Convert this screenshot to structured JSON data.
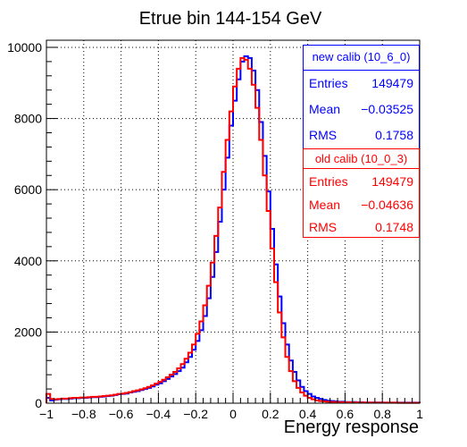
{
  "chart_data": {
    "type": "histogram",
    "title": "Etrue bin 144-154 GeV",
    "xlabel": "Energy response",
    "ylabel": "",
    "xlim": [
      -1,
      1
    ],
    "ylim": [
      0,
      10200
    ],
    "x_ticks": [
      "−1",
      "−0.8",
      "−0.6",
      "−0.4",
      "−0.2",
      "0",
      "0.2",
      "0.4",
      "0.6",
      "0.8",
      "1"
    ],
    "y_ticks": [
      "0",
      "2000",
      "4000",
      "6000",
      "8000",
      "10000"
    ],
    "grid": true,
    "legend_placement": "top-right",
    "bin_edges_range": [
      -1,
      1
    ],
    "bin_count": 100,
    "series": [
      {
        "name": "new calib (10_6_0)",
        "color": "#0000ff",
        "values": [
          150,
          80,
          100,
          110,
          120,
          120,
          130,
          140,
          140,
          150,
          150,
          160,
          170,
          170,
          180,
          190,
          200,
          210,
          230,
          250,
          260,
          270,
          300,
          320,
          340,
          370,
          400,
          430,
          470,
          520,
          560,
          620,
          680,
          750,
          820,
          900,
          1000,
          1150,
          1300,
          1500,
          1750,
          2050,
          2450,
          2950,
          3550,
          4250,
          5100,
          6000,
          6900,
          7800,
          8500,
          9100,
          9600,
          9750,
          9700,
          9350,
          8800,
          7900,
          6950,
          5950,
          4900,
          3900,
          3000,
          2250,
          1650,
          1200,
          880,
          640,
          460,
          340,
          260,
          190,
          150,
          120,
          90,
          70,
          60,
          50,
          40,
          40,
          30,
          30,
          30,
          25,
          25,
          20,
          20,
          20,
          20,
          20,
          15,
          15,
          15,
          15,
          15,
          15,
          15,
          15,
          15,
          15
        ],
        "stats": {
          "entries": "149479",
          "mean": "−0.03525",
          "rms": "0.1758"
        }
      },
      {
        "name": "old calib (10_0_3)",
        "color": "#ff0000",
        "values": [
          260,
          120,
          110,
          120,
          130,
          130,
          140,
          150,
          150,
          160,
          160,
          170,
          180,
          180,
          190,
          200,
          210,
          220,
          240,
          260,
          270,
          290,
          310,
          340,
          360,
          390,
          420,
          460,
          500,
          550,
          600,
          660,
          730,
          800,
          880,
          980,
          1100,
          1250,
          1420,
          1650,
          1950,
          2300,
          2750,
          3300,
          3950,
          4700,
          5500,
          6500,
          7400,
          8200,
          8900,
          9400,
          9700,
          9650,
          9400,
          8950,
          8300,
          7400,
          6400,
          5400,
          4350,
          3400,
          2550,
          1850,
          1300,
          900,
          620,
          430,
          300,
          210,
          150,
          110,
          80,
          60,
          50,
          40,
          35,
          30,
          30,
          25,
          25,
          25,
          20,
          20,
          20,
          20,
          15,
          15,
          15,
          15,
          15,
          15,
          15,
          15,
          10,
          10,
          10,
          10,
          10,
          10
        ],
        "stats": {
          "entries": "149479",
          "mean": "−0.04636",
          "rms": "0.1748"
        }
      }
    ]
  },
  "stats_labels": {
    "entries": "Entries",
    "mean": "Mean",
    "rms": "RMS"
  }
}
